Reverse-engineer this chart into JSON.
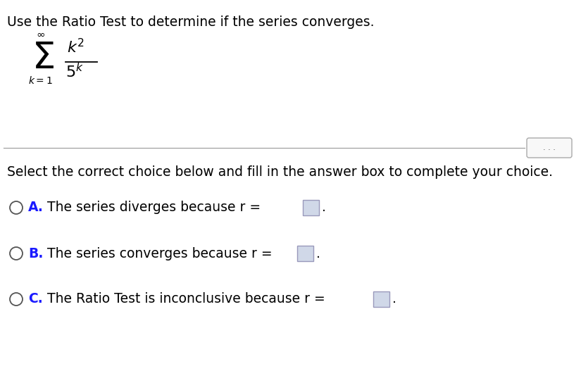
{
  "title_text": "Use the Ratio Test to determine if the series converges.",
  "select_text": "Select the correct choice below and fill in the answer box to complete your choice.",
  "choice_A_label": "A.",
  "choice_A_text": "The series diverges because r =",
  "choice_B_label": "B.",
  "choice_B_text": "The series converges because r =",
  "choice_C_label": "C.",
  "choice_C_text": "The Ratio Test is inconclusive because r =",
  "bg_color": "#ffffff",
  "text_color": "#000000",
  "label_color": "#1a1aff",
  "circle_color": "#555555",
  "box_fill": "#d0d8e8",
  "box_edge": "#9999bb",
  "separator_color": "#999999",
  "dots_color": "#444444",
  "title_fontsize": 13.5,
  "body_fontsize": 13.5
}
